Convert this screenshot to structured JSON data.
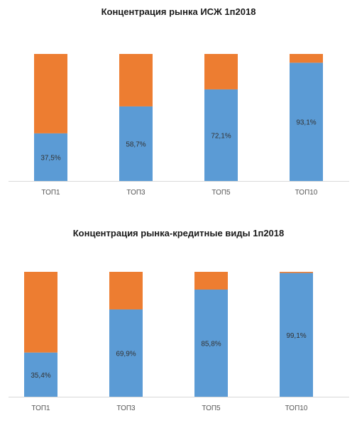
{
  "chart_data": [
    {
      "type": "bar",
      "stacked": true,
      "title": "Концентрация рынка ИСЖ 1п2018",
      "categories": [
        "ТОП1",
        "ТОП3",
        "ТОП5",
        "ТОП10"
      ],
      "series": [
        {
          "values": [
            37.5,
            58.7,
            72.1,
            93.1
          ],
          "color": "#5B9BD5"
        },
        {
          "values": [
            62.5,
            41.3,
            27.9,
            6.9
          ],
          "color": "#ED7D31"
        }
      ],
      "data_labels": [
        "37,5%",
        "58,7%",
        "72,1%",
        "93,1%"
      ],
      "ylim": [
        0,
        100
      ],
      "grid": false,
      "legend": "none"
    },
    {
      "type": "bar",
      "stacked": true,
      "title": "Концентрация рынка-кредитные виды 1п2018",
      "categories": [
        "ТОП1",
        "ТОП3",
        "ТОП5",
        "ТОП10"
      ],
      "series": [
        {
          "values": [
            35.4,
            69.9,
            85.8,
            99.1
          ],
          "color": "#5B9BD5"
        },
        {
          "values": [
            64.6,
            30.1,
            14.2,
            0.9
          ],
          "color": "#ED7D31"
        }
      ],
      "data_labels": [
        "35,4%",
        "69,9%",
        "85,8%",
        "99,1%"
      ],
      "ylim": [
        0,
        100
      ],
      "grid": false,
      "legend": "none"
    }
  ]
}
